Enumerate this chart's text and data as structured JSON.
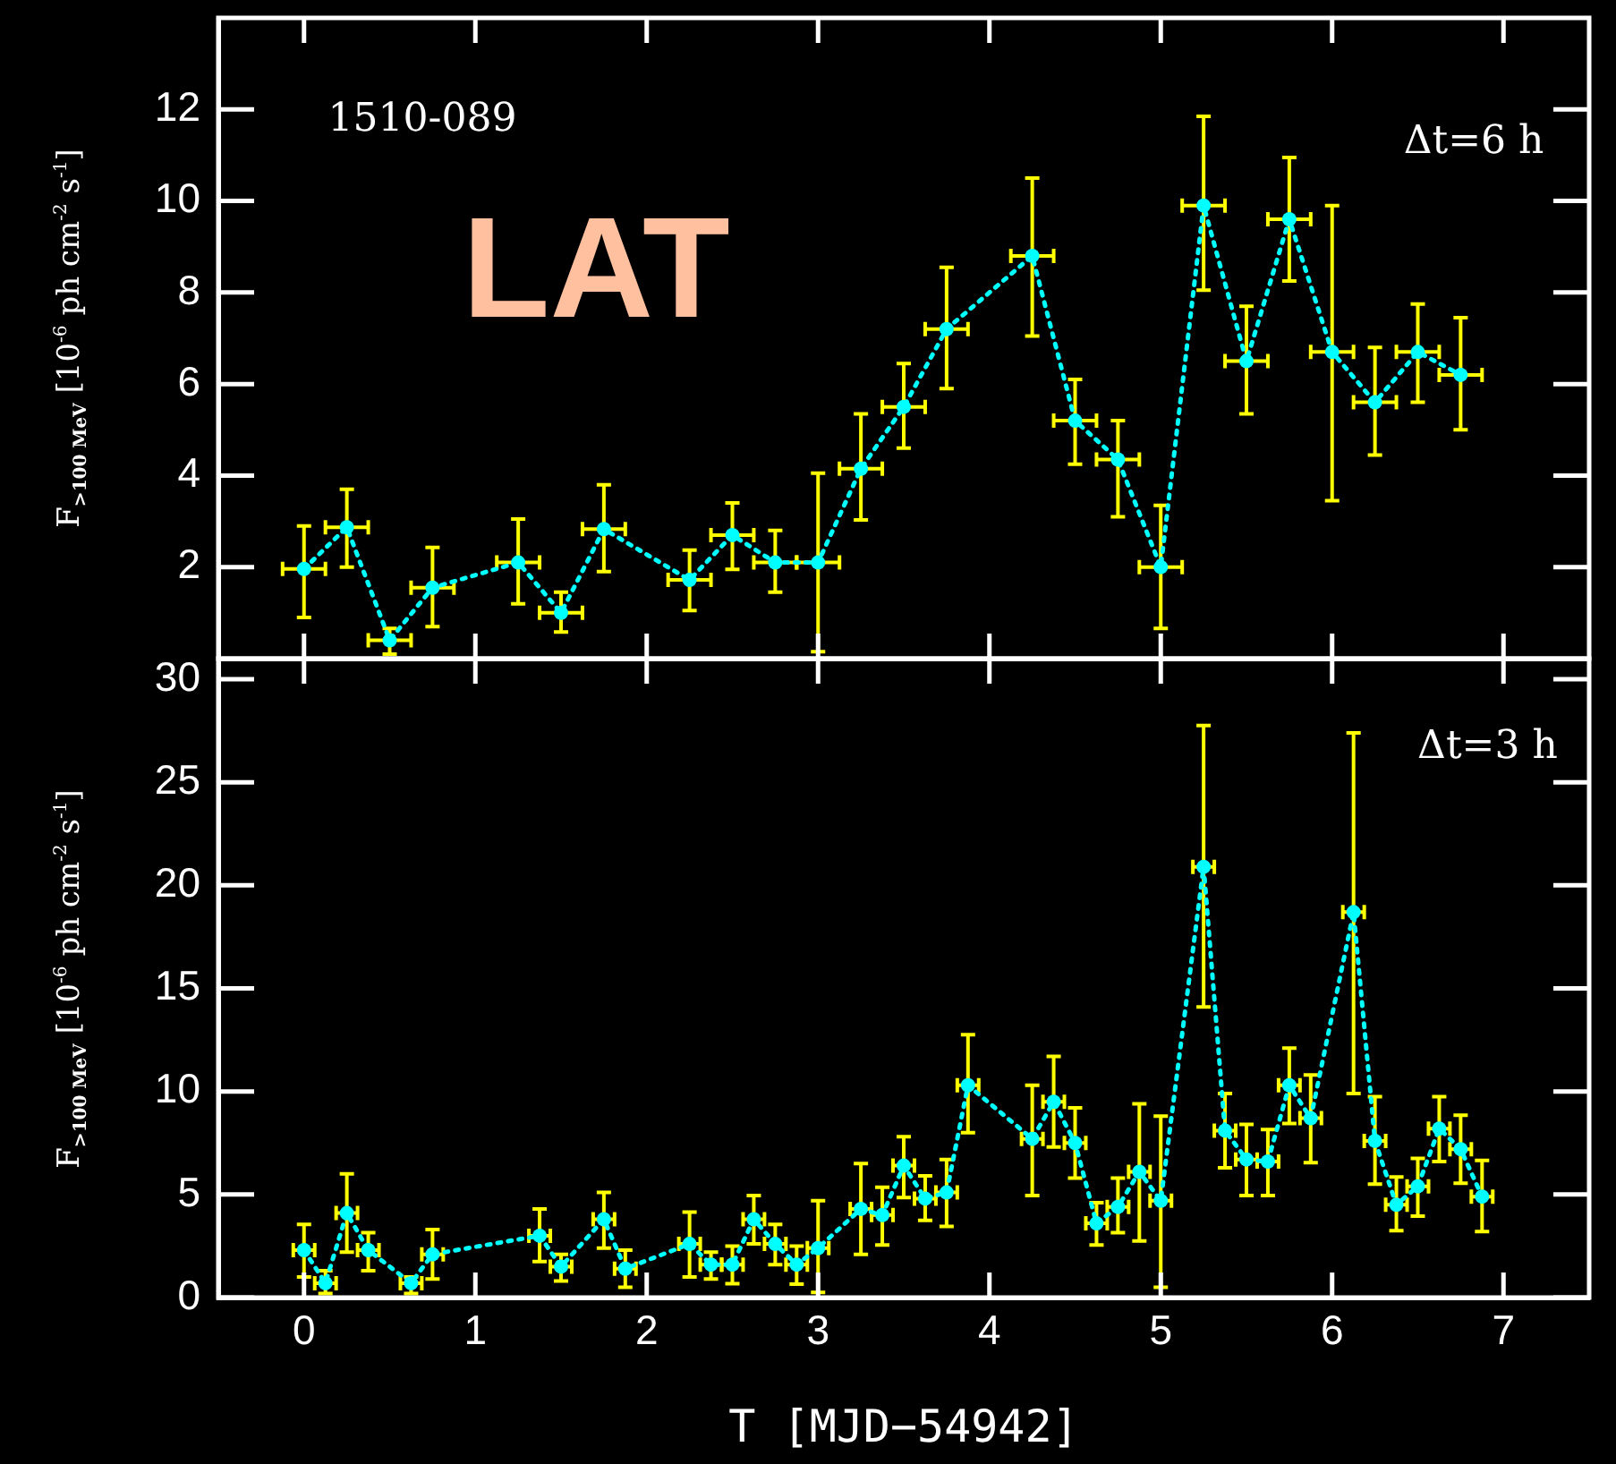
{
  "chart_data": [
    {
      "type": "line",
      "ylabel": "F$_{>100 MeV}$ [10$^{-6}$ ph cm$^{-2}$ s$^{-1}$]",
      "annotations": [
        "1510-089",
        "LAT",
        "Δt=6 h"
      ],
      "color": "#00ffff",
      "marker": "circle",
      "line_style": "dotted",
      "tick_labels": "y",
      "xlim": [
        -0.5,
        7.5
      ],
      "xticks": [
        0,
        1,
        2,
        3,
        4,
        5,
        6,
        7
      ],
      "ylim": [
        0,
        14
      ],
      "yticks": [
        2,
        4,
        6,
        8,
        10,
        12
      ],
      "x": [
        0,
        0.25,
        0.5,
        0.75,
        1.25,
        1.5,
        1.75,
        2.25,
        2.5,
        2.75,
        3,
        3.25,
        3.5,
        3.75,
        4.25,
        4.5,
        4.75,
        5,
        5.25,
        5.5,
        5.75,
        6,
        6.25,
        6.5,
        6.75
      ],
      "values": [
        1.96,
        2.87,
        0.4,
        1.55,
        2.1,
        1.0,
        2.83,
        1.72,
        2.7,
        2.1,
        2.1,
        4.15,
        5.5,
        7.2,
        8.8,
        5.2,
        4.35,
        2.0,
        9.9,
        6.5,
        9.6,
        6.7,
        5.6,
        6.7,
        6.2
      ],
      "errors": [
        [
          0.9,
          2.9
        ],
        [
          2.0,
          3.7
        ],
        [
          0.1,
          0.66
        ],
        [
          0.7,
          2.43
        ],
        [
          1.2,
          3.05
        ],
        [
          0.58,
          1.45
        ],
        [
          1.9,
          3.8
        ],
        [
          1.05,
          2.37
        ],
        [
          1.95,
          3.4
        ],
        [
          1.45,
          2.8
        ],
        [
          0.15,
          4.05
        ],
        [
          3.03,
          5.35
        ],
        [
          4.6,
          6.45
        ],
        [
          5.9,
          8.55
        ],
        [
          7.05,
          10.5
        ],
        [
          4.25,
          6.1
        ],
        [
          3.1,
          5.2
        ],
        [
          0.66,
          3.35
        ],
        [
          8.05,
          11.85
        ],
        [
          5.35,
          7.7
        ],
        [
          8.25,
          10.95
        ],
        [
          3.45,
          9.9
        ],
        [
          4.45,
          6.8
        ],
        [
          5.6,
          7.75
        ],
        [
          5.0,
          7.45
        ]
      ],
      "xerrors": [
        0.125,
        0.125,
        0.125,
        0.125,
        0.125,
        0.125,
        0.125,
        0.125,
        0.125,
        0.125,
        0.125,
        0.125,
        0.125,
        0.125,
        0.125,
        0.125,
        0.125,
        0.125,
        0.125,
        0.125,
        0.125,
        0.125,
        0.125,
        0.125,
        0.125
      ]
    },
    {
      "type": "line",
      "xlabel": "T [MJD−54942]",
      "ylabel": "F$_{>100 MeV}$ [10$^{-6}$ ph cm$^{-2}$ s$^{-1}$]",
      "annotations": [
        "Δt=3 h"
      ],
      "color": "#00ffff",
      "marker": "circle",
      "line_style": "dotted",
      "xlim": [
        -0.5,
        7.5
      ],
      "xticks": [
        0,
        1,
        2,
        3,
        4,
        5,
        6,
        7
      ],
      "ylim": [
        0,
        31
      ],
      "yticks": [
        0,
        5,
        10,
        15,
        20,
        25,
        30
      ],
      "x": [
        0,
        0.125,
        0.25,
        0.375,
        0.625,
        0.75,
        1.375,
        1.5,
        1.75,
        1.875,
        2.25,
        2.375,
        2.5,
        2.625,
        2.75,
        2.875,
        3,
        3.25,
        3.375,
        3.5,
        3.625,
        3.75,
        3.875,
        4.25,
        4.375,
        4.5,
        4.625,
        4.75,
        4.875,
        5,
        5.25,
        5.375,
        5.5,
        5.625,
        5.75,
        5.875,
        6.125,
        6.25,
        6.375,
        6.5,
        6.625,
        6.75,
        6.875
      ],
      "values": [
        2.3,
        0.7,
        4.1,
        2.3,
        0.7,
        2.1,
        3.0,
        1.5,
        3.8,
        1.4,
        2.6,
        1.6,
        1.6,
        3.8,
        2.6,
        1.6,
        2.4,
        4.3,
        4.0,
        6.4,
        4.8,
        5.1,
        10.3,
        7.7,
        9.5,
        7.5,
        3.6,
        4.4,
        6.1,
        4.7,
        20.9,
        8.1,
        6.7,
        6.6,
        10.3,
        8.7,
        18.7,
        7.6,
        4.5,
        5.4,
        8.2,
        7.2,
        4.9
      ],
      "errors": [
        [
          1.0,
          3.55
        ],
        [
          0.2,
          1.3
        ],
        [
          2.2,
          6.0
        ],
        [
          1.3,
          3.15
        ],
        [
          0.2,
          1.0
        ],
        [
          0.9,
          3.3
        ],
        [
          1.75,
          4.3
        ],
        [
          0.8,
          2.1
        ],
        [
          2.4,
          5.1
        ],
        [
          0.5,
          2.3
        ],
        [
          1.0,
          4.15
        ],
        [
          0.9,
          2.2
        ],
        [
          0.67,
          2.5
        ],
        [
          2.6,
          4.95
        ],
        [
          1.6,
          3.55
        ],
        [
          0.65,
          2.5
        ],
        [
          0.25,
          4.7
        ],
        [
          2.1,
          6.5
        ],
        [
          2.55,
          5.35
        ],
        [
          4.85,
          7.8
        ],
        [
          3.75,
          5.9
        ],
        [
          3.45,
          6.7
        ],
        [
          8.0,
          12.75
        ],
        [
          4.95,
          10.3
        ],
        [
          7.3,
          11.7
        ],
        [
          5.8,
          9.2
        ],
        [
          2.55,
          4.6
        ],
        [
          3.15,
          5.8
        ],
        [
          2.75,
          9.4
        ],
        [
          0.5,
          8.8
        ],
        [
          14.1,
          27.75
        ],
        [
          6.3,
          9.9
        ],
        [
          4.95,
          8.4
        ],
        [
          4.95,
          8.15
        ],
        [
          8.45,
          12.1
        ],
        [
          6.55,
          10.8
        ],
        [
          9.9,
          27.4
        ],
        [
          5.5,
          9.75
        ],
        [
          3.25,
          5.85
        ],
        [
          3.95,
          6.75
        ],
        [
          6.6,
          9.75
        ],
        [
          5.55,
          8.85
        ],
        [
          3.2,
          6.65
        ]
      ],
      "xerrors": [
        0.0625,
        0.0625,
        0.0625,
        0.0625,
        0.0625,
        0.0625,
        0.0625,
        0.0625,
        0.0625,
        0.0625,
        0.0625,
        0.0625,
        0.0625,
        0.0625,
        0.0625,
        0.0625,
        0.0625,
        0.0625,
        0.0625,
        0.0625,
        0.0625,
        0.0625,
        0.0625,
        0.0625,
        0.0625,
        0.0625,
        0.0625,
        0.0625,
        0.0625,
        0.0625,
        0.0625,
        0.0625,
        0.0625,
        0.0625,
        0.0625,
        0.0625,
        0.0625,
        0.0625,
        0.0625,
        0.0625,
        0.0625,
        0.0625,
        0.0625
      ]
    }
  ]
}
